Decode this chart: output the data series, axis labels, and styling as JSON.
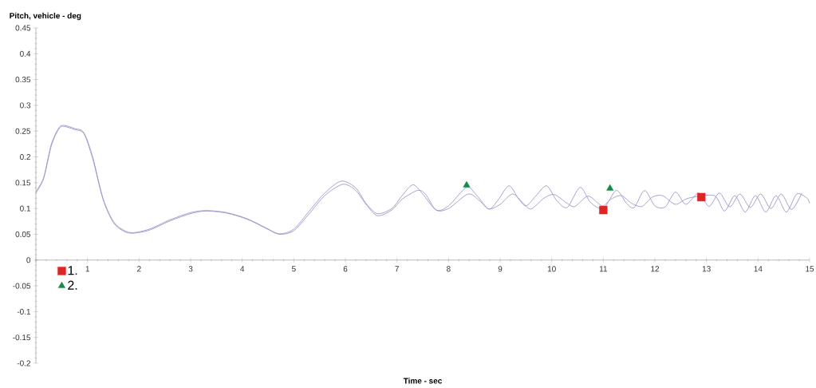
{
  "chart_data": {
    "type": "line",
    "xlabel": "Time - sec",
    "ylabel": "Pitch, vehicle - deg",
    "xlim": [
      0,
      15
    ],
    "ylim": [
      -0.2,
      0.45
    ],
    "xticks": [
      {
        "value": 0,
        "label": null
      },
      1,
      2,
      3,
      4,
      5,
      6,
      7,
      8,
      9,
      10,
      11,
      12,
      13,
      14,
      15
    ],
    "yticks": [
      -0.2,
      -0.15,
      -0.1,
      -0.05,
      0,
      0.05,
      0.1,
      0.15,
      0.2,
      0.25,
      0.3,
      0.35,
      0.4,
      0.45
    ],
    "grid": false,
    "legend": "bottom left",
    "marker": "none",
    "line_style": "solid",
    "series": [
      {
        "color": "#9999cc",
        "x": [
          0,
          0.15,
          0.3,
          0.45,
          0.55,
          0.75,
          0.93,
          1.1,
          1.3,
          1.5,
          1.7,
          1.88,
          2.2,
          2.6,
          3.0,
          3.3,
          3.7,
          4.1,
          4.45,
          4.72,
          5.0,
          5.3,
          5.6,
          5.92,
          6.2,
          6.4,
          6.62,
          6.9,
          7.1,
          7.31,
          7.5,
          7.76,
          8.0,
          8.35,
          8.55,
          8.78,
          8.95,
          9.17,
          9.35,
          9.5,
          9.7,
          9.9,
          10.1,
          10.3,
          10.55,
          10.75,
          11.0,
          11.25,
          11.45,
          11.6,
          11.8,
          12.0,
          12.2,
          12.4,
          12.6,
          12.85,
          13.05,
          13.25,
          13.45,
          13.65,
          13.85,
          14.05,
          14.25,
          14.45,
          14.65,
          14.85
        ],
        "values": [
          0.133,
          0.16,
          0.225,
          0.257,
          0.261,
          0.255,
          0.247,
          0.2,
          0.12,
          0.075,
          0.058,
          0.053,
          0.06,
          0.078,
          0.092,
          0.096,
          0.092,
          0.08,
          0.063,
          0.051,
          0.06,
          0.095,
          0.13,
          0.153,
          0.14,
          0.11,
          0.09,
          0.1,
          0.125,
          0.146,
          0.128,
          0.097,
          0.105,
          0.141,
          0.125,
          0.099,
          0.115,
          0.144,
          0.12,
          0.105,
          0.125,
          0.144,
          0.115,
          0.102,
          0.141,
          0.112,
          0.1,
          0.135,
          0.11,
          0.102,
          0.135,
          0.105,
          0.103,
          0.132,
          0.108,
          0.13,
          0.104,
          0.13,
          0.103,
          0.128,
          0.102,
          0.128,
          0.1,
          0.128,
          0.098,
          0.13
        ]
      },
      {
        "color": "#9999cc",
        "x": [
          0,
          0.15,
          0.3,
          0.45,
          0.55,
          0.75,
          0.93,
          1.1,
          1.3,
          1.5,
          1.7,
          1.88,
          2.2,
          2.6,
          3.0,
          3.3,
          3.7,
          4.1,
          4.45,
          4.72,
          5.0,
          5.3,
          5.6,
          5.95,
          6.2,
          6.4,
          6.62,
          6.9,
          7.1,
          7.4,
          7.55,
          7.76,
          8.0,
          8.38,
          8.6,
          8.78,
          9.0,
          9.24,
          9.45,
          9.6,
          9.85,
          10.05,
          10.3,
          10.45,
          10.7,
          10.9,
          11.0,
          11.15,
          11.35,
          11.55,
          11.75,
          11.95,
          12.15,
          12.4,
          12.65,
          12.9,
          13.15,
          13.35,
          13.55,
          13.75,
          13.95,
          14.15,
          14.35,
          14.55,
          14.75,
          14.95,
          15
        ],
        "values": [
          0.13,
          0.158,
          0.222,
          0.255,
          0.259,
          0.253,
          0.245,
          0.197,
          0.118,
          0.073,
          0.056,
          0.052,
          0.058,
          0.076,
          0.09,
          0.095,
          0.091,
          0.079,
          0.062,
          0.05,
          0.057,
          0.09,
          0.125,
          0.147,
          0.135,
          0.108,
          0.086,
          0.097,
          0.118,
          0.135,
          0.128,
          0.097,
          0.1,
          0.128,
          0.115,
          0.099,
          0.108,
          0.128,
          0.11,
          0.099,
          0.12,
          0.127,
          0.11,
          0.104,
          0.124,
          0.11,
          0.105,
          0.118,
          0.125,
          0.11,
          0.104,
          0.122,
          0.125,
          0.108,
          0.12,
          null,
          0.125,
          0.095,
          0.125,
          0.093,
          0.125,
          0.093,
          0.125,
          0.093,
          0.128,
          0.12,
          0.11
        ]
      },
      {
        "type": "scatter",
        "name": "1.",
        "color": "#e02424",
        "marker": "square",
        "x": [
          11,
          12.9
        ],
        "values": [
          0.097,
          0.122
        ]
      },
      {
        "type": "scatter",
        "name": "2.",
        "color": "#168a48",
        "marker": "triangle",
        "x": [
          8.35,
          11.13
        ],
        "values": [
          0.145,
          0.139
        ]
      }
    ]
  }
}
